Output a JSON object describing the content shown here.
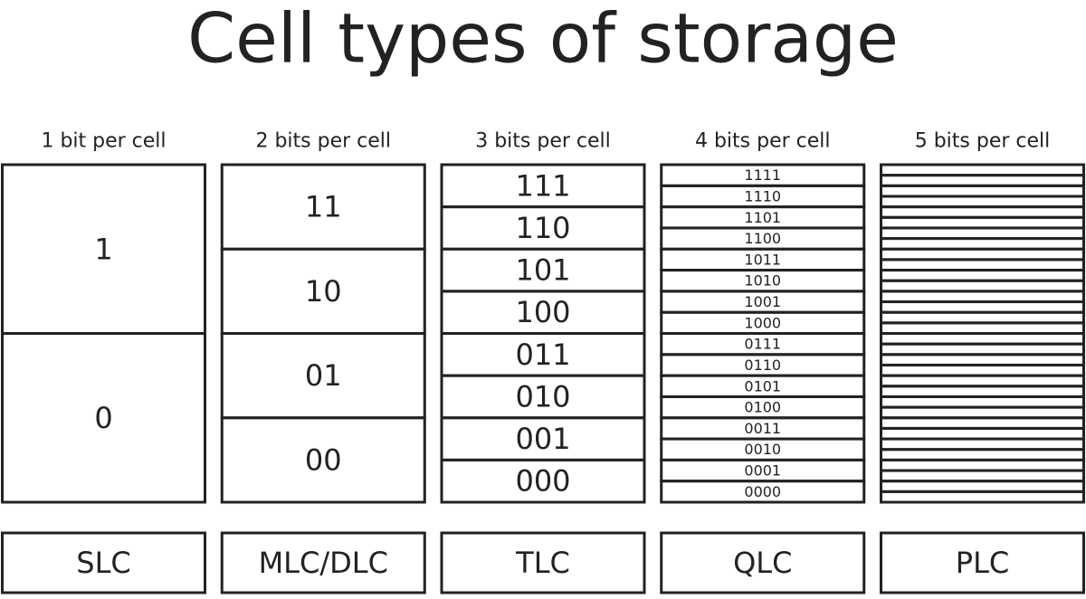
{
  "title": "Cell types of storage",
  "columns": [
    {
      "header": "1 bit per cell",
      "levels": [
        "1",
        "0"
      ],
      "label": "SLC"
    },
    {
      "header": "2 bits per cell",
      "levels": [
        "11",
        "10",
        "01",
        "00"
      ],
      "label": "MLC/DLC"
    },
    {
      "header": "3 bits per cell",
      "levels": [
        "111",
        "110",
        "101",
        "100",
        "011",
        "010",
        "001",
        "000"
      ],
      "label": "TLC"
    },
    {
      "header": "4 bits per cell",
      "levels": [
        "1111",
        "1110",
        "1101",
        "1100",
        "1011",
        "1010",
        "1001",
        "1000",
        "0111",
        "0110",
        "0101",
        "0100",
        "0011",
        "0010",
        "0001",
        "0000"
      ],
      "label": "QLC"
    },
    {
      "header": "5 bits per cell",
      "levels": [],
      "label": "PLC"
    }
  ]
}
